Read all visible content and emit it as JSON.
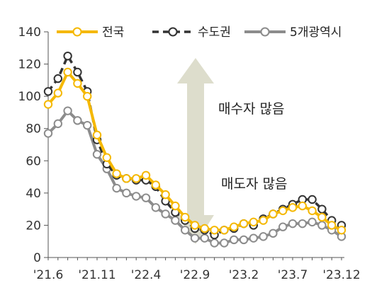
{
  "chart_data": {
    "type": "line",
    "x": [
      "'21.6",
      "'21.7",
      "'21.8",
      "'21.9",
      "'21.10",
      "'21.11",
      "'21.12",
      "'22.1",
      "'22.2",
      "'22.3",
      "'22.4",
      "'22.5",
      "'22.6",
      "'22.7",
      "'22.8",
      "'22.9",
      "'22.10",
      "'22.11",
      "'22.12",
      "'23.1",
      "'23.2",
      "'23.3",
      "'23.4",
      "'23.5",
      "'23.6",
      "'23.7",
      "'23.8",
      "'23.9",
      "'23.10",
      "'23.11",
      "'23.12"
    ],
    "x_tick_labels": [
      "'21.6",
      "'21.11",
      "'22.4",
      "'22.9",
      "'23.2",
      "'23.7",
      "'23.12"
    ],
    "ylim": [
      0,
      140
    ],
    "yticks": [
      0,
      20,
      40,
      60,
      80,
      100,
      120,
      140
    ],
    "legend_position": "top",
    "series": [
      {
        "name": "전국",
        "color": "#F5B800",
        "line_style": "solid",
        "values": [
          95,
          102,
          115,
          108,
          100,
          76,
          62,
          52,
          49,
          49,
          51,
          45,
          39,
          32,
          25,
          20,
          18,
          17,
          17,
          19,
          21,
          22,
          23,
          27,
          29,
          31,
          32,
          29,
          25,
          20,
          17
        ]
      },
      {
        "name": "수도권",
        "color": "#333333",
        "line_style": "dashed",
        "values": [
          103,
          111,
          125,
          115,
          103,
          73,
          58,
          51,
          49,
          48,
          48,
          44,
          35,
          28,
          23,
          18,
          17,
          14,
          17,
          18,
          21,
          20,
          24,
          27,
          30,
          33,
          36,
          36,
          30,
          23,
          20
        ]
      },
      {
        "name": "5개광역시",
        "color": "#8C8C8C",
        "line_style": "solid",
        "values": [
          77,
          83,
          91,
          85,
          82,
          64,
          55,
          43,
          40,
          38,
          37,
          31,
          27,
          23,
          17,
          12,
          12,
          9,
          9,
          11,
          11,
          12,
          13,
          15,
          19,
          21,
          21,
          22,
          20,
          17,
          13
        ]
      }
    ],
    "annotations": {
      "upper": "매수자 많음",
      "lower": "매도자 많음"
    }
  }
}
